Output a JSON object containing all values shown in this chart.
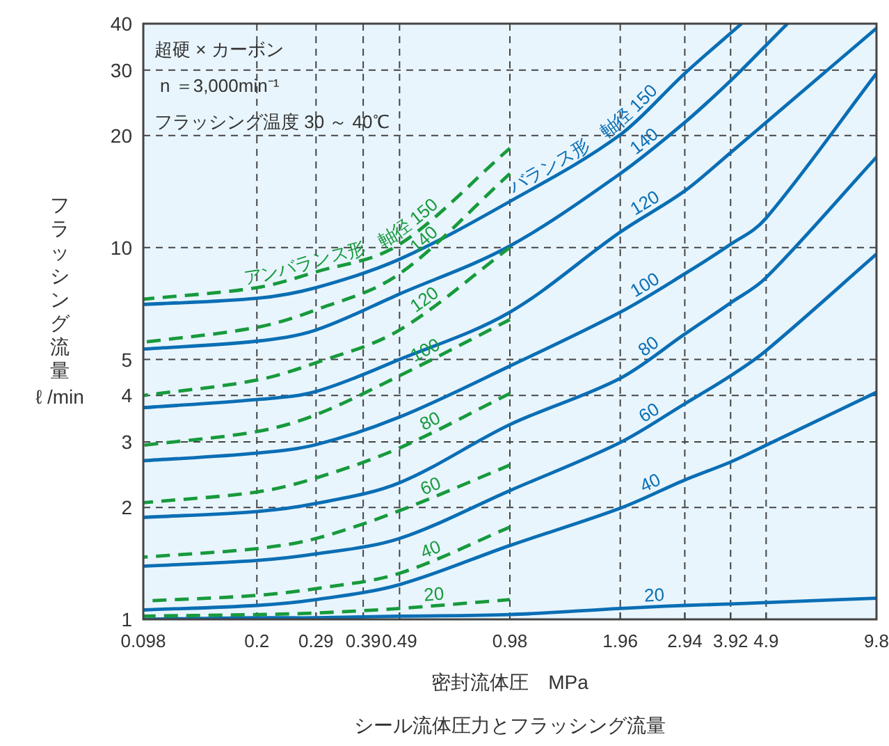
{
  "chart_data": {
    "type": "line",
    "log": "xy",
    "xlabel": "密封流体圧　MPa",
    "ylabel": "フラッシング流量 ℓ /min",
    "annotations": [
      "超硬 × カーボン",
      "n ＝3,000min⁻¹",
      "フラッシング温度 30 ～ 40℃",
      "シール流体圧力とフラッシング流量"
    ],
    "xlim": [
      0.098,
      9.8
    ],
    "xticks": [
      0.098,
      0.2,
      0.29,
      0.39,
      0.49,
      0.98,
      1.96,
      2.94,
      3.92,
      4.9,
      9.8
    ],
    "ylim": [
      1,
      40
    ],
    "yticks": [
      1,
      2,
      3,
      4,
      5,
      10,
      20,
      30,
      40
    ],
    "grid": true,
    "series": [
      {
        "name": "20",
        "color": "#0a6eb4",
        "line_style": "solid",
        "x": [
          0.098,
          0.2,
          0.29,
          0.49,
          0.98,
          1.96,
          2.94,
          3.92,
          4.9,
          9.8
        ],
        "values": [
          1.0,
          1.01,
          1.01,
          1.02,
          1.03,
          1.07,
          1.09,
          1.1,
          1.11,
          1.14
        ]
      },
      {
        "name": "40",
        "color": "#0a6eb4",
        "line_style": "solid",
        "x": [
          0.098,
          0.2,
          0.29,
          0.49,
          0.98,
          1.96,
          2.94,
          3.92,
          4.9,
          9.8
        ],
        "values": [
          1.06,
          1.09,
          1.13,
          1.24,
          1.58,
          1.99,
          2.37,
          2.65,
          2.94,
          4.08
        ]
      },
      {
        "name": "60",
        "color": "#0a6eb4",
        "line_style": "solid",
        "x": [
          0.098,
          0.2,
          0.29,
          0.49,
          0.98,
          1.96,
          2.94,
          3.92,
          4.9,
          9.8
        ],
        "values": [
          1.39,
          1.44,
          1.5,
          1.65,
          2.22,
          2.99,
          3.8,
          4.52,
          5.28,
          9.6
        ]
      },
      {
        "name": "80",
        "color": "#0a6eb4",
        "line_style": "solid",
        "x": [
          0.098,
          0.2,
          0.29,
          0.49,
          0.98,
          1.96,
          2.94,
          3.92,
          4.9,
          9.8
        ],
        "values": [
          1.88,
          1.95,
          2.05,
          2.33,
          3.34,
          4.45,
          5.85,
          7.1,
          8.3,
          17.5
        ]
      },
      {
        "name": "100",
        "color": "#0a6eb4",
        "line_style": "solid",
        "x": [
          0.098,
          0.2,
          0.29,
          0.49,
          0.98,
          1.96,
          2.94,
          3.92,
          4.9,
          9.8
        ],
        "values": [
          2.67,
          2.8,
          2.95,
          3.5,
          4.8,
          6.7,
          8.5,
          10.2,
          12,
          29.4
        ]
      },
      {
        "name": "120",
        "color": "#0a6eb4",
        "line_style": "solid",
        "x": [
          0.098,
          0.2,
          0.29,
          0.49,
          0.98,
          1.96,
          2.94,
          3.92,
          4.9,
          9.8
        ],
        "values": [
          3.71,
          3.9,
          4.1,
          5.0,
          6.7,
          11,
          14.2,
          18,
          21.7,
          38.9
        ]
      },
      {
        "name": "140",
        "color": "#0a6eb4",
        "line_style": "solid",
        "x": [
          0.098,
          0.2,
          0.29,
          0.49,
          0.98,
          1.96,
          2.94,
          3.92,
          4.9,
          5.6
        ],
        "values": [
          5.33,
          5.6,
          6.0,
          7.5,
          10.1,
          15.8,
          21.7,
          28.1,
          35,
          40
        ]
      },
      {
        "name": "バランス形　軸径 150",
        "color": "#0a6eb4",
        "line_style": "solid",
        "x": [
          0.098,
          0.2,
          0.29,
          0.49,
          0.98,
          1.96,
          2.94,
          4.2
        ],
        "values": [
          7.03,
          7.3,
          7.8,
          9.3,
          13.3,
          20.1,
          29.4,
          40
        ]
      },
      {
        "name": "20",
        "color": "#179a3c",
        "line_style": "dashed",
        "x": [
          0.098,
          0.2,
          0.29,
          0.49,
          0.98
        ],
        "values": [
          1.02,
          1.03,
          1.04,
          1.07,
          1.13
        ]
      },
      {
        "name": "40",
        "color": "#179a3c",
        "line_style": "dashed",
        "x": [
          0.098,
          0.2,
          0.29,
          0.49,
          0.98
        ],
        "values": [
          1.12,
          1.16,
          1.21,
          1.33,
          1.77
        ]
      },
      {
        "name": "60",
        "color": "#179a3c",
        "line_style": "dashed",
        "x": [
          0.098,
          0.2,
          0.29,
          0.49,
          0.98
        ],
        "values": [
          1.47,
          1.55,
          1.65,
          1.96,
          2.6
        ]
      },
      {
        "name": "80",
        "color": "#179a3c",
        "line_style": "dashed",
        "x": [
          0.098,
          0.2,
          0.29,
          0.49,
          0.98
        ],
        "values": [
          2.06,
          2.2,
          2.4,
          2.89,
          4.05
        ]
      },
      {
        "name": "100",
        "color": "#179a3c",
        "line_style": "dashed",
        "x": [
          0.098,
          0.2,
          0.29,
          0.49,
          0.98
        ],
        "values": [
          2.94,
          3.2,
          3.55,
          4.52,
          6.4
        ]
      },
      {
        "name": "120",
        "color": "#179a3c",
        "line_style": "dashed",
        "x": [
          0.098,
          0.2,
          0.29,
          0.49,
          0.98
        ],
        "values": [
          4.0,
          4.4,
          4.9,
          6.0,
          10
        ]
      },
      {
        "name": "140",
        "color": "#179a3c",
        "line_style": "dashed",
        "x": [
          0.098,
          0.2,
          0.29,
          0.49,
          0.98
        ],
        "values": [
          5.56,
          6.1,
          6.8,
          8.5,
          15.8
        ]
      },
      {
        "name": "アンバランス形　軸径 150",
        "color": "#179a3c",
        "line_style": "dashed",
        "x": [
          0.098,
          0.2,
          0.29,
          0.49,
          0.98
        ],
        "values": [
          7.26,
          7.8,
          8.6,
          10.2,
          18.5
        ]
      }
    ]
  }
}
